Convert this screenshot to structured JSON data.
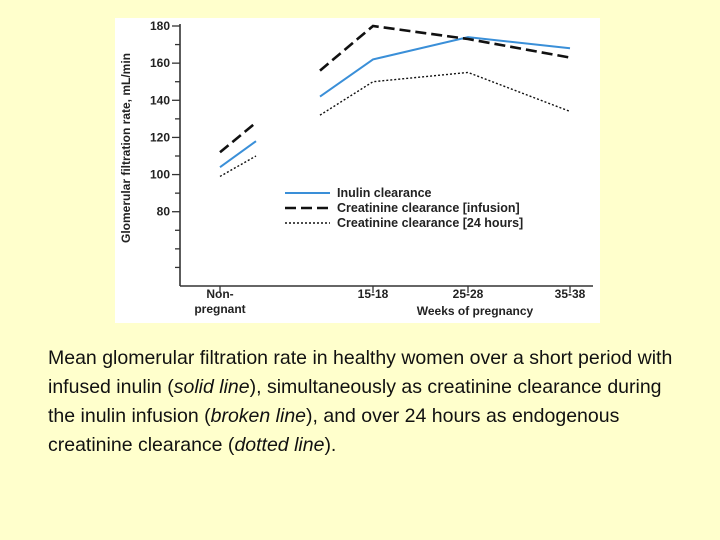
{
  "chart_data": {
    "type": "line",
    "ylabel": "Glomerular filtration rate, mL/min",
    "xlabel": "Weeks of pregnancy",
    "ylim": [
      40,
      180
    ],
    "yticks": [
      80,
      100,
      120,
      140,
      160,
      180
    ],
    "categories": [
      "Non-pregnant",
      "15-18",
      "25-28",
      "35-38"
    ],
    "category_lines": [
      [
        "Non-",
        "pregnant"
      ],
      [
        "15-18"
      ],
      [
        "25-28"
      ],
      [
        "35-38"
      ]
    ],
    "legend_position": "middle-right",
    "series": [
      {
        "name": "Inulin clearance",
        "style": "solid",
        "color": "#3a8fd8",
        "segments": [
          [
            {
              "x": "Non-pregnant",
              "y": 104
            },
            {
              "x": "Non-pregnant",
              "y": 118
            }
          ],
          [
            {
              "x": "15-18",
              "y": 142
            },
            {
              "x": "15-18",
              "y": 162
            },
            {
              "x": "25-28",
              "y": 174
            },
            {
              "x": "35-38",
              "y": 168
            }
          ]
        ]
      },
      {
        "name": "Creatinine clearance [infusion]",
        "style": "dashed",
        "color": "#111111",
        "segments": [
          [
            {
              "x": "Non-pregnant",
              "y": 112
            },
            {
              "x": "Non-pregnant",
              "y": 128
            }
          ],
          [
            {
              "x": "15-18",
              "y": 156
            },
            {
              "x": "15-18",
              "y": 180
            },
            {
              "x": "25-28",
              "y": 173
            },
            {
              "x": "35-38",
              "y": 163
            }
          ]
        ]
      },
      {
        "name": "Creatinine clearance [24 hours]",
        "style": "dotted",
        "color": "#111111",
        "segments": [
          [
            {
              "x": "Non-pregnant",
              "y": 99
            },
            {
              "x": "Non-pregnant",
              "y": 110
            }
          ],
          [
            {
              "x": "15-18",
              "y": 132
            },
            {
              "x": "15-18",
              "y": 150
            },
            {
              "x": "25-28",
              "y": 155
            },
            {
              "x": "35-38",
              "y": 134
            }
          ]
        ]
      }
    ]
  },
  "caption": {
    "part1": "Mean glomerular filtration rate in healthy women over a short period with infused inulin (",
    "solid": "solid line",
    "part2": "), simultaneously as creatinine clearance during the inulin infusion (",
    "broken": "broken line",
    "part3": "), and over 24 hours as endogenous creatinine clearance (",
    "dotted": "dotted line",
    "part4": ")."
  }
}
